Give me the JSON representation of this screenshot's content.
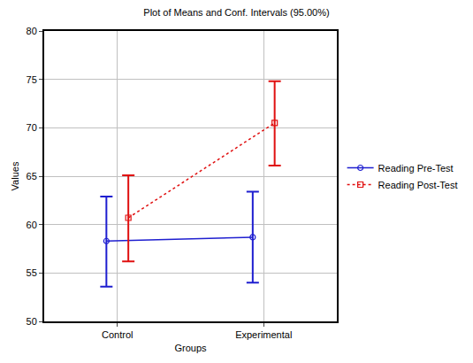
{
  "chart_data": {
    "type": "line",
    "title": "Plot of Means and Conf. Intervals (95.00%)",
    "x_label": "Groups",
    "y_label": "Values",
    "categories": [
      "Control",
      "Experimental"
    ],
    "series": [
      {
        "name": "Reading Pre-Test",
        "color": "#1f1fd0",
        "marker": "circle-open",
        "line_style": "solid",
        "values": [
          58.3,
          58.7
        ],
        "ci_low": [
          53.6,
          54.0
        ],
        "ci_high": [
          62.9,
          63.4
        ]
      },
      {
        "name": "Reading Post-Test",
        "color": "#e01010",
        "marker": "square-open",
        "line_style": "dash",
        "values": [
          60.7,
          70.5
        ],
        "ci_low": [
          56.2,
          66.1
        ],
        "ci_high": [
          65.1,
          74.8
        ]
      }
    ],
    "ylim": [
      50,
      80
    ],
    "yticks": [
      50,
      55,
      60,
      65,
      70,
      75,
      80
    ],
    "grid": true,
    "legend": "right"
  }
}
